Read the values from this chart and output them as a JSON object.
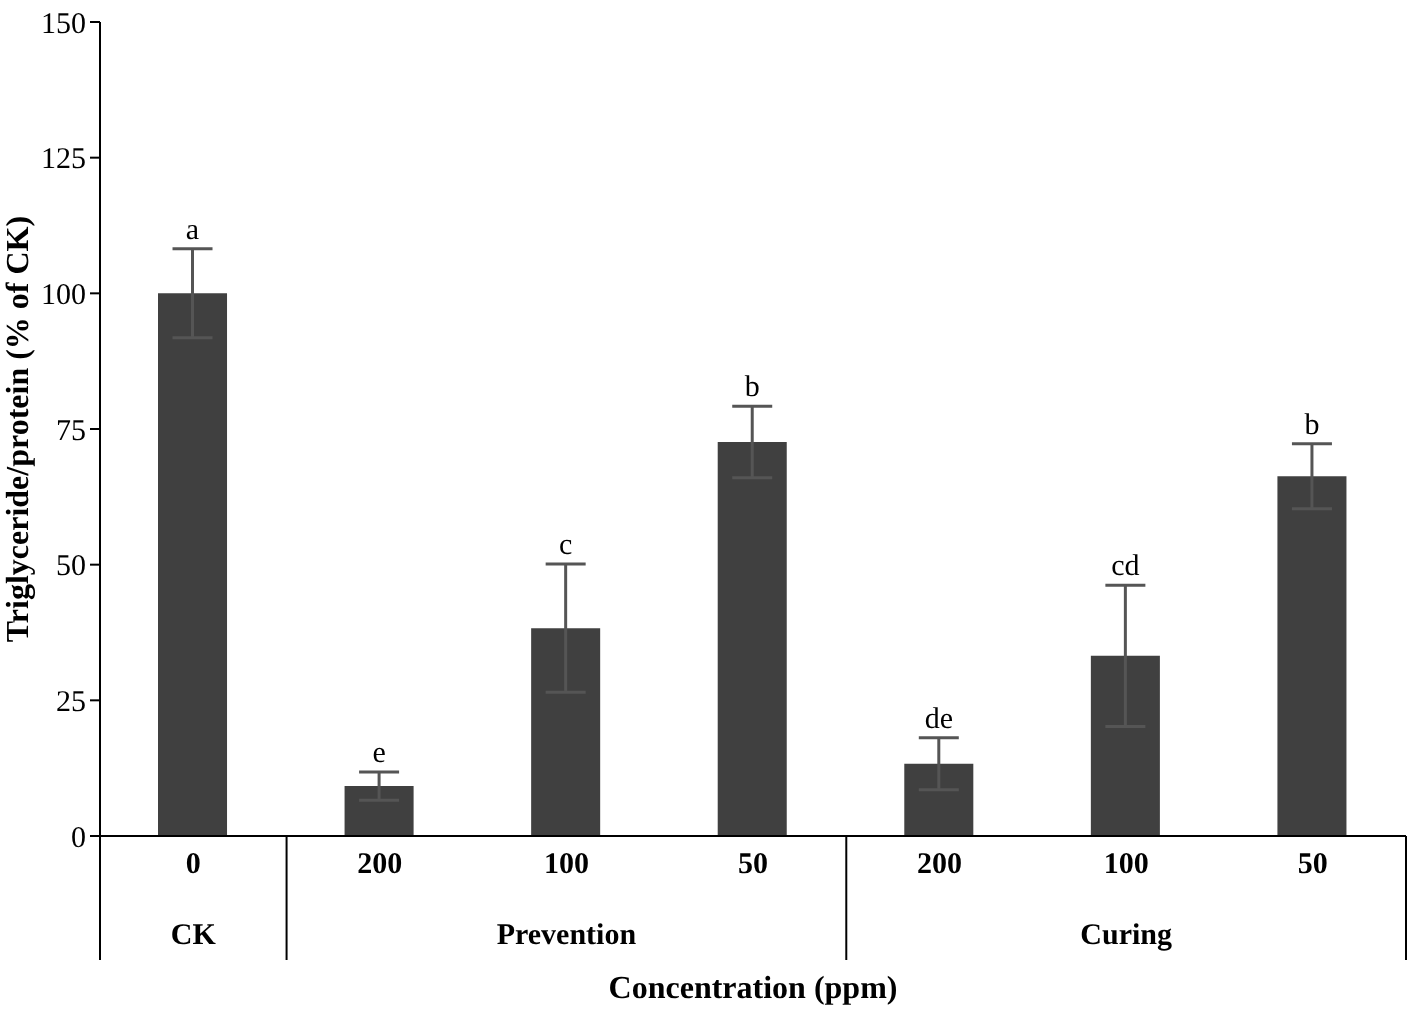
{
  "chart_data": {
    "type": "bar",
    "xlabel": "Concentration (ppm)",
    "ylabel": "Triglyceride/protein (% of CK)",
    "categories": [
      "0",
      "200",
      "100",
      "50",
      "200",
      "100",
      "50"
    ],
    "values": [
      100,
      9.2,
      38.3,
      72.6,
      13.3,
      33.2,
      66.3
    ],
    "errors": [
      8.2,
      2.6,
      11.8,
      6.6,
      4.8,
      13,
      6
    ],
    "value_labels": [
      "a",
      "e",
      "c",
      "b",
      "de",
      "cd",
      "b"
    ],
    "color": "#404040",
    "ylim": [
      0,
      150
    ],
    "yticks": [
      0,
      25,
      50,
      75,
      100,
      125,
      150
    ],
    "grid": false,
    "annotations": [
      "CK",
      "Prevention",
      "Curing"
    ]
  }
}
